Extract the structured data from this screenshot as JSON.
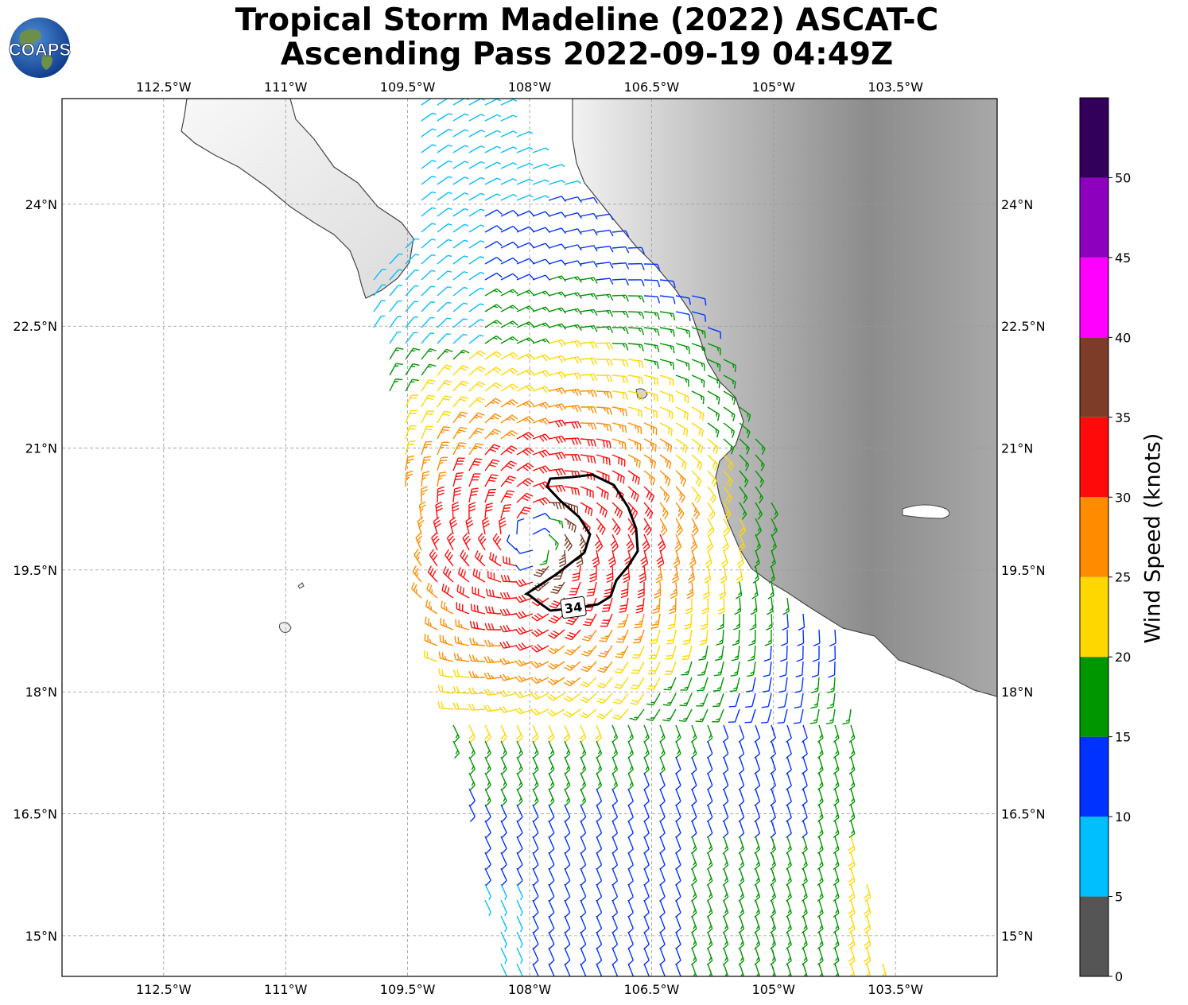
{
  "title": {
    "line1": "Tropical Storm Madeline (2022) ASCAT-C",
    "line2": "Ascending Pass 2022-09-19 04:49Z"
  },
  "logo": {
    "text": "COAPS",
    "icon": "globe-icon"
  },
  "map": {
    "lon_range": [
      -113.75,
      -102.25
    ],
    "lat_range": [
      14.5,
      25.3
    ],
    "lon_ticks": [
      "112.5°W",
      "111°W",
      "109.5°W",
      "108°W",
      "106.5°W",
      "105°W",
      "103.5°W"
    ],
    "lon_tick_values": [
      -112.5,
      -111,
      -109.5,
      -108,
      -106.5,
      -105,
      -103.5
    ],
    "lat_ticks": [
      "24°N",
      "22.5°N",
      "21°N",
      "19.5°N",
      "18°N",
      "16.5°N",
      "15°N"
    ],
    "lat_tick_values": [
      24,
      22.5,
      21,
      19.5,
      18,
      16.5,
      15
    ],
    "grid": true,
    "storm_center": {
      "lon": -107.95,
      "lat": 19.85
    },
    "contour_label": "34",
    "colors": {
      "land_light": "#e8e8e8",
      "land_dark": "#6e6e6e",
      "coast": "#444444",
      "contour": "#000000"
    }
  },
  "colorbar": {
    "label": "Wind Speed (knots)",
    "tick_labels": [
      "0",
      "5",
      "10",
      "15",
      "20",
      "25",
      "30",
      "35",
      "40",
      "45",
      "50"
    ],
    "colors": [
      "#555555",
      "#00bfff",
      "#0032ff",
      "#009600",
      "#ffd700",
      "#ff8c00",
      "#ff0a0a",
      "#7d3c28",
      "#ff00ff",
      "#8c00be",
      "#32005a"
    ]
  }
}
